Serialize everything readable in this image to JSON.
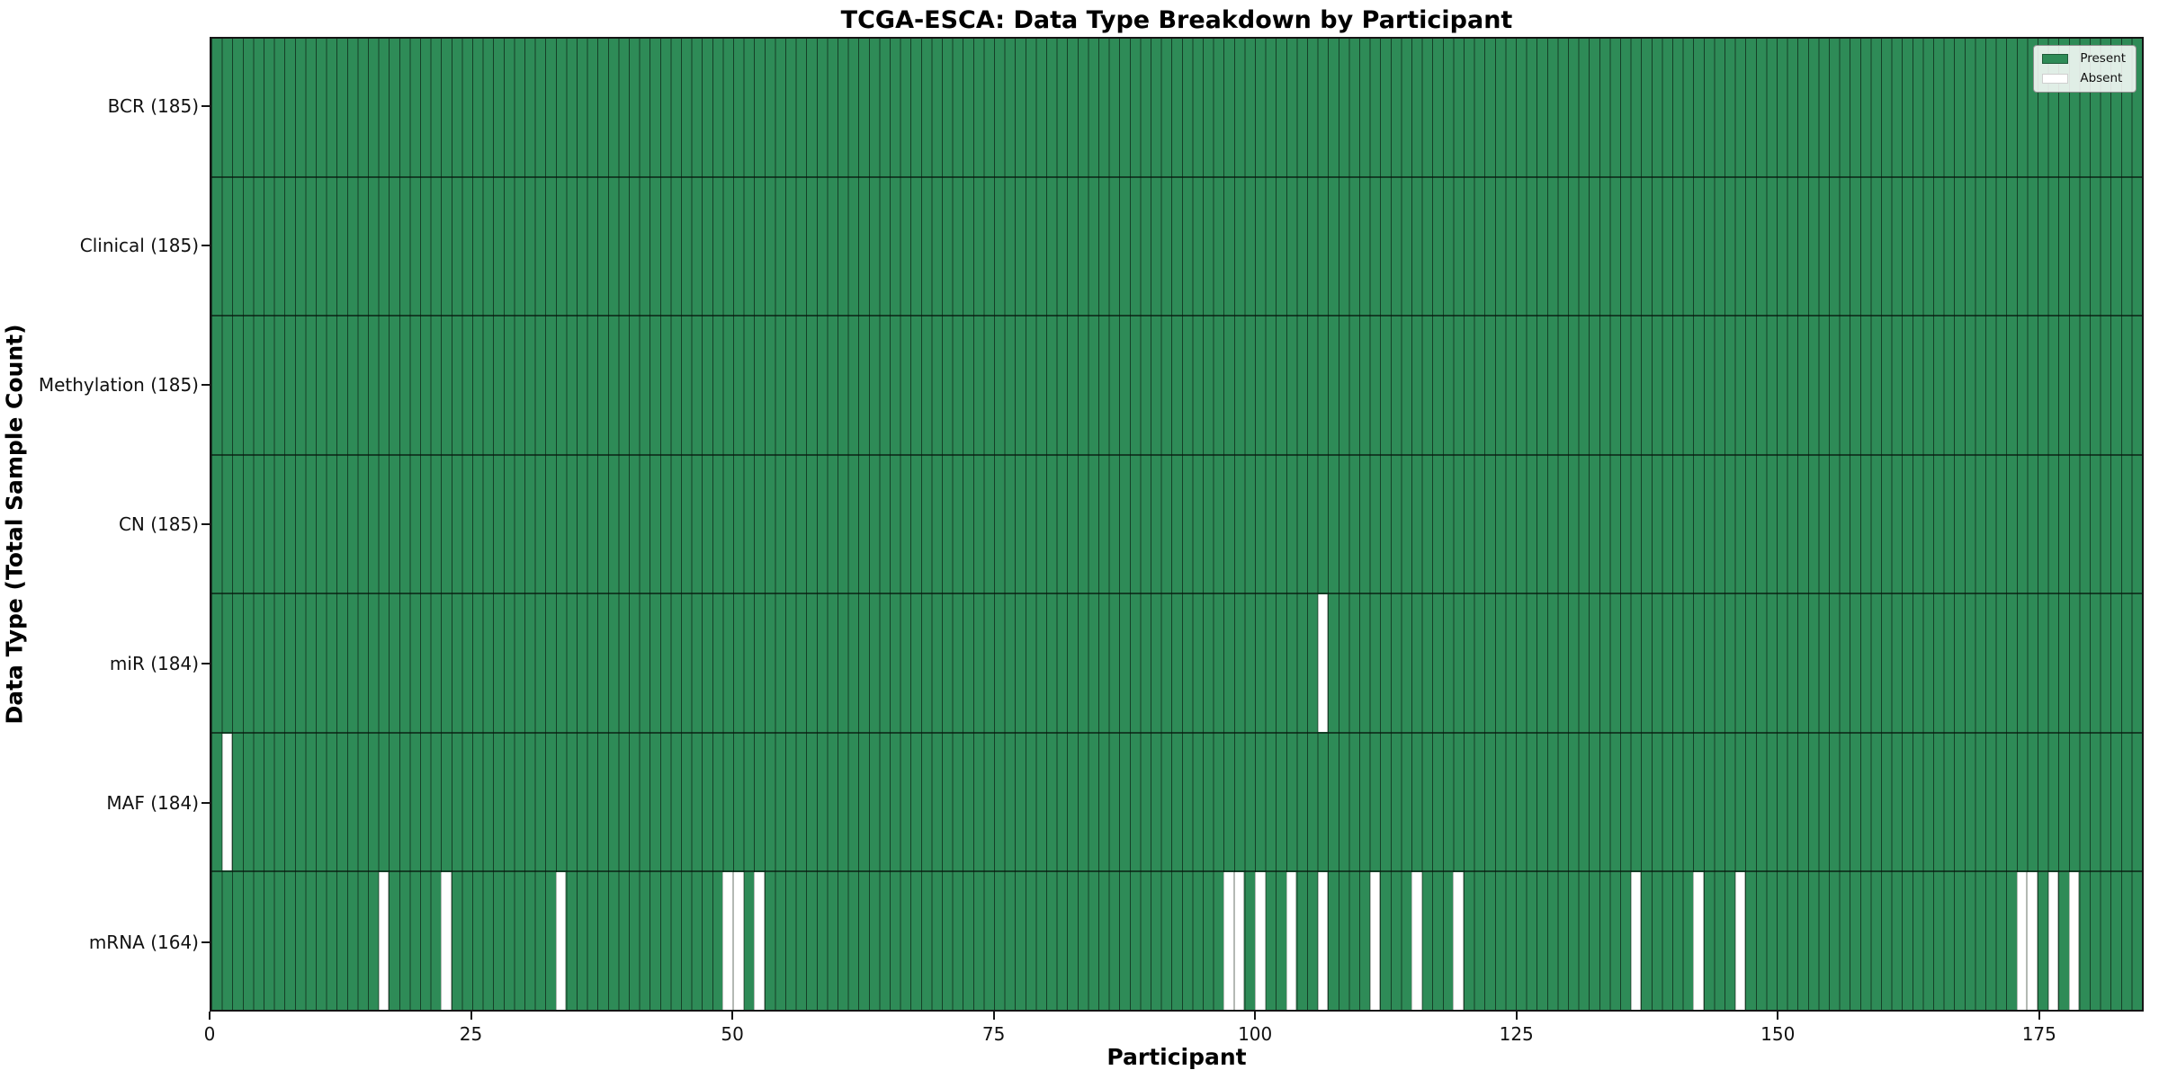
{
  "title": "TCGA-ESCA: Data Type Breakdown by Participant",
  "xlabel": "Participant",
  "ylabel": "Data Type (Total Sample Count)",
  "legend": {
    "present_label": "Present",
    "absent_label": "Absent",
    "position": "upper right"
  },
  "colors": {
    "present": "#2e8b57",
    "absent": "#ffffff",
    "cell_edge": "rgba(0, 0, 0, 0.55)",
    "row_divider": "rgba(8, 24, 14, 0.68)",
    "legend_bg": "rgba(255, 255, 255, 0.85)",
    "axis": "#151515"
  },
  "chart_data": {
    "type": "heatmap",
    "n_participants": 185,
    "xlim": [
      0,
      185
    ],
    "x_ticks": [
      0,
      25,
      50,
      75,
      100,
      125,
      150,
      175
    ],
    "grid": false,
    "legend_entries": [
      "Present",
      "Absent"
    ],
    "rows": [
      {
        "name": "BCR",
        "label": "BCR (185)",
        "present_count": 185,
        "absent_participants": []
      },
      {
        "name": "Clinical",
        "label": "Clinical (185)",
        "present_count": 185,
        "absent_participants": []
      },
      {
        "name": "Methylation",
        "label": "Methylation (185)",
        "present_count": 185,
        "absent_participants": []
      },
      {
        "name": "CN",
        "label": "CN (185)",
        "present_count": 185,
        "absent_participants": []
      },
      {
        "name": "miR",
        "label": "miR (184)",
        "present_count": 184,
        "absent_participants": [
          106
        ]
      },
      {
        "name": "MAF",
        "label": "MAF (184)",
        "present_count": 184,
        "absent_participants": [
          1
        ]
      },
      {
        "name": "mRNA",
        "label": "mRNA (164)",
        "present_count": 164,
        "absent_participants": [
          16,
          22,
          33,
          49,
          50,
          52,
          97,
          98,
          100,
          103,
          106,
          111,
          115,
          119,
          136,
          142,
          146,
          173,
          174,
          176,
          178
        ]
      }
    ]
  }
}
